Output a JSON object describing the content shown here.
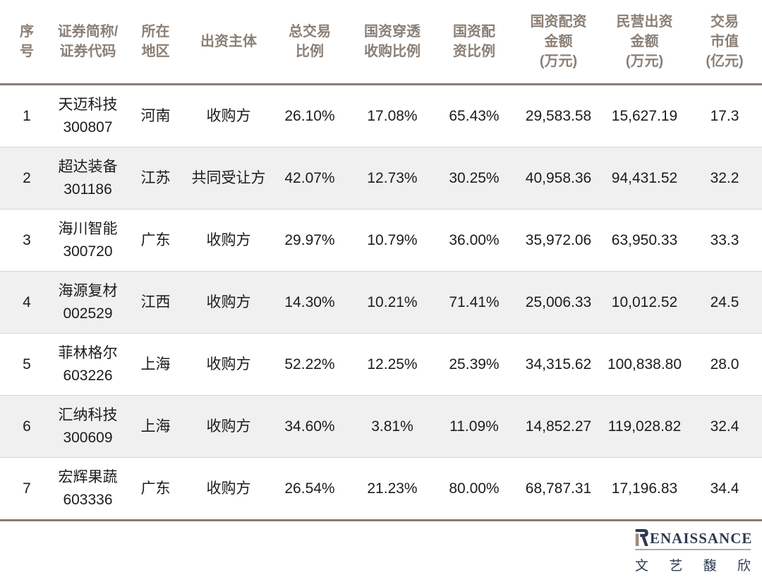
{
  "colors": {
    "header_text": "#8b7f76",
    "thick_border": "#8a7c72",
    "thin_border": "#dcd5d0",
    "zebra_row_bg": "#f0f0f0",
    "body_text": "#1c1c1c",
    "brand_navy": "#2e3a51",
    "brand_tan": "#9c8c7e",
    "brand_rule": "#b3a89d"
  },
  "chart_data": {
    "type": "table",
    "columns": [
      "序\n号",
      "证券简称/\n证券代码",
      "所在\n地区",
      "出资主体",
      "总交易\n比例",
      "国资穿透\n收购比例",
      "国资配\n资比例",
      "国资配资\n金额\n(万元)",
      "民营出资\n金额\n(万元)",
      "交易\n市值\n(亿元)"
    ],
    "rows": [
      [
        "1",
        "天迈科技\n300807",
        "河南",
        "收购方",
        "26.10%",
        "17.08%",
        "65.43%",
        "29,583.58",
        "15,627.19",
        "17.3"
      ],
      [
        "2",
        "超达装备\n301186",
        "江苏",
        "共同受让方",
        "42.07%",
        "12.73%",
        "30.25%",
        "40,958.36",
        "94,431.52",
        "32.2"
      ],
      [
        "3",
        "海川智能\n300720",
        "广东",
        "收购方",
        "29.97%",
        "10.79%",
        "36.00%",
        "35,972.06",
        "63,950.33",
        "33.3"
      ],
      [
        "4",
        "海源复材\n002529",
        "江西",
        "收购方",
        "14.30%",
        "10.21%",
        "71.41%",
        "25,006.33",
        "10,012.52",
        "24.5"
      ],
      [
        "5",
        "菲林格尔\n603226",
        "上海",
        "收购方",
        "52.22%",
        "12.25%",
        "25.39%",
        "34,315.62",
        "100,838.80",
        "28.0"
      ],
      [
        "6",
        "汇纳科技\n300609",
        "上海",
        "收购方",
        "34.60%",
        "3.81%",
        "11.09%",
        "14,852.27",
        "119,028.82",
        "32.4"
      ],
      [
        "7",
        "宏辉果蔬\n603336",
        "广东",
        "收购方",
        "26.54%",
        "21.23%",
        "80.00%",
        "68,787.31",
        "17,196.83",
        "34.4"
      ]
    ]
  },
  "logo": {
    "wordmark_initial": "R",
    "wordmark_rest": "ENAISSANCE",
    "name_cn": "文艺馥欣"
  }
}
